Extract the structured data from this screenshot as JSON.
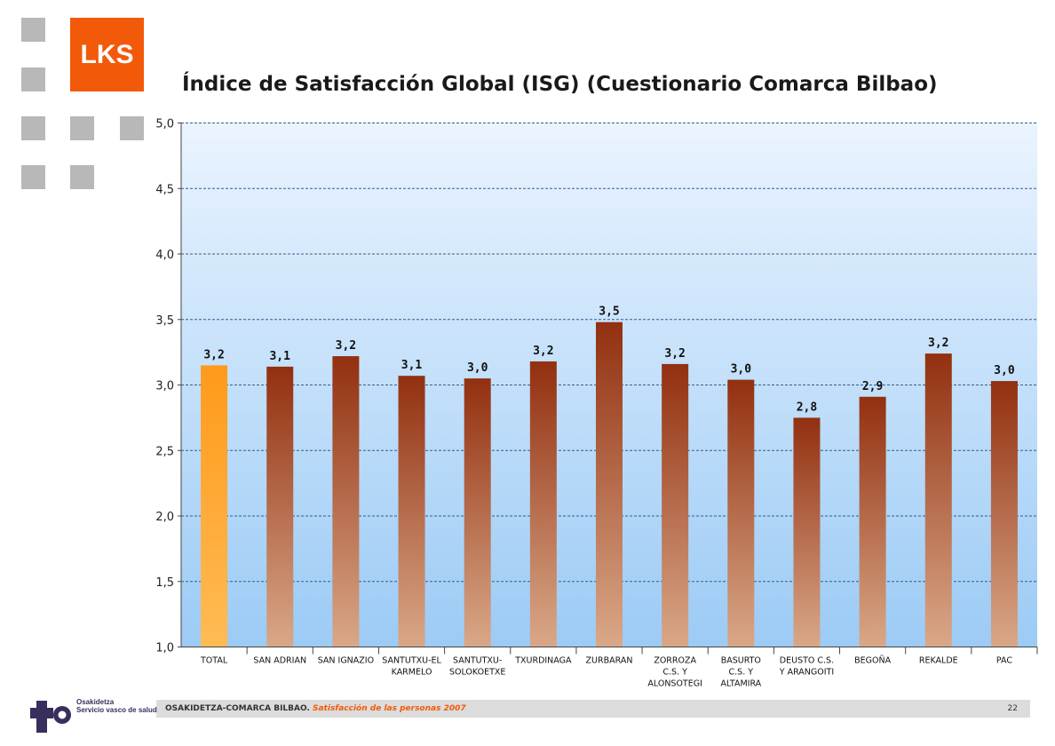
{
  "brand": {
    "logo_text": "LKS",
    "logo_color": "#f25a0a"
  },
  "title": "Índice de Satisfacción Global (ISG) (Cuestionario Comarca Bilbao)",
  "chart_data": {
    "type": "bar",
    "title": "Índice de Satisfacción Global (ISG) (Cuestionario Comarca Bilbao)",
    "xlabel": "",
    "ylabel": "",
    "ylim": [
      1.0,
      5.0
    ],
    "yticks": [
      "1,0",
      "1,5",
      "2,0",
      "2,5",
      "3,0",
      "3,5",
      "4,0",
      "4,5",
      "5,0"
    ],
    "ytick_values": [
      1.0,
      1.5,
      2.0,
      2.5,
      3.0,
      3.5,
      4.0,
      4.5,
      5.0
    ],
    "grid": true,
    "categories": [
      [
        "TOTAL"
      ],
      [
        "SAN ADRIAN"
      ],
      [
        "SAN IGNAZIO"
      ],
      [
        "SANTUTXU-EL",
        "KARMELO"
      ],
      [
        "SANTUTXU-",
        "SOLOKOETXE"
      ],
      [
        "TXURDINAGA"
      ],
      [
        "ZURBARAN"
      ],
      [
        "ZORROZA",
        "C.S. Y",
        "ALONSOTEGI"
      ],
      [
        "BASURTO",
        "C.S. Y",
        "ALTAMIRA"
      ],
      [
        "DEUSTO C.S.",
        "Y ARANGOITI"
      ],
      [
        "BEGOÑA"
      ],
      [
        "REKALDE"
      ],
      [
        "PAC"
      ]
    ],
    "values": [
      3.15,
      3.14,
      3.22,
      3.07,
      3.05,
      3.18,
      3.48,
      3.16,
      3.04,
      2.75,
      2.91,
      3.24,
      3.03
    ],
    "data_labels": [
      "3,2",
      "3,1",
      "3,2",
      "3,1",
      "3,0",
      "3,2",
      "3,5",
      "3,2",
      "3,0",
      "2,8",
      "2,9",
      "3,2",
      "3,0"
    ],
    "highlight_index": 0,
    "colors": {
      "highlight_top": "#ff9a1a",
      "highlight_bottom": "#ffbb55",
      "bar_top": "#923010",
      "bar_bottom": "#d9a888",
      "plot_bg_top": "#eaf4ff",
      "plot_bg_bottom": "#9ccbf5",
      "grid": "#3a5a8a"
    }
  },
  "footer": {
    "org": "OSAKIDETZA-COMARCA BILBAO.",
    "subtitle": "Satisfacción de las personas 2007",
    "page": "22",
    "logo_line1": "Osakidetza",
    "logo_line2": "Servicio vasco de salud"
  }
}
